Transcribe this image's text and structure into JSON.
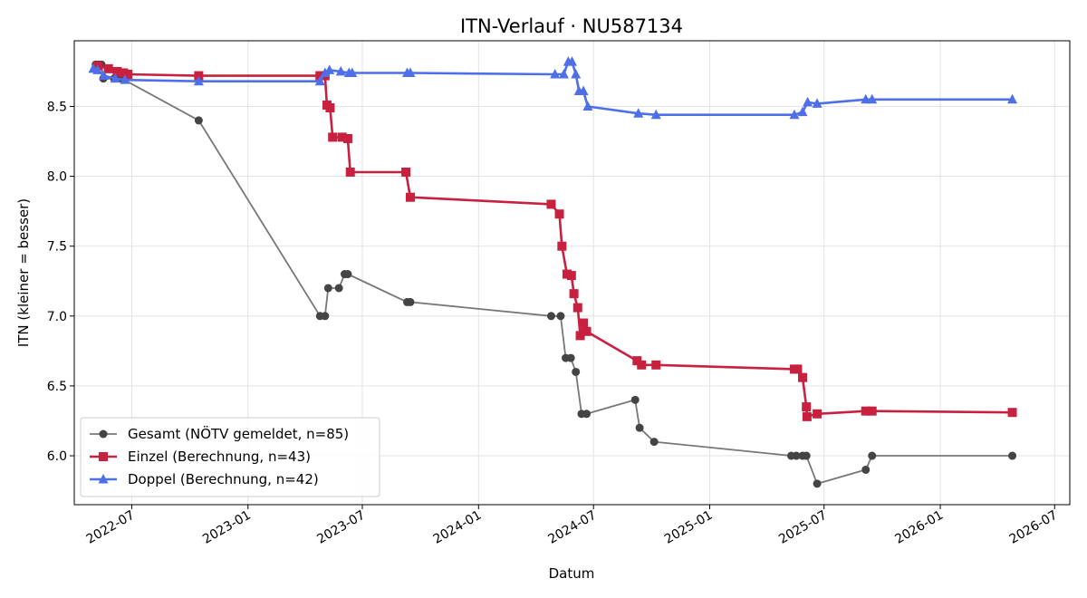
{
  "chart_data": {
    "type": "line",
    "title": "ITN-Verlauf · NU587134",
    "xlabel": "Datum",
    "ylabel": "ITN  (kleiner = besser)",
    "xlim": [
      "2022-04-01",
      "2026-07-25"
    ],
    "ylim": [
      5.65,
      8.97
    ],
    "x_ticks": [
      "2022-07",
      "2023-01",
      "2023-07",
      "2024-01",
      "2024-07",
      "2025-01",
      "2025-07",
      "2026-01",
      "2026-07"
    ],
    "y_ticks": [
      "6.0",
      "6.5",
      "7.0",
      "7.5",
      "8.0",
      "8.5"
    ],
    "grid": true,
    "legend_position": "lower-left",
    "series": [
      {
        "name": "Gesamt (NÖTV gemeldet, n=85)",
        "color": "#444444",
        "line_color": "#777777",
        "marker": "circle",
        "points": [
          [
            "2022-05-05",
            8.8
          ],
          [
            "2022-05-10",
            8.8
          ],
          [
            "2022-05-14",
            8.8
          ],
          [
            "2022-05-17",
            8.7
          ],
          [
            "2022-06-03",
            8.7
          ],
          [
            "2022-06-10",
            8.7
          ],
          [
            "2022-06-15",
            8.7
          ],
          [
            "2022-10-15",
            8.4
          ],
          [
            "2023-04-25",
            7.0
          ],
          [
            "2023-05-03",
            7.0
          ],
          [
            "2023-05-08",
            7.2
          ],
          [
            "2023-05-25",
            7.2
          ],
          [
            "2023-06-03",
            7.3
          ],
          [
            "2023-06-08",
            7.3
          ],
          [
            "2023-09-10",
            7.1
          ],
          [
            "2023-09-15",
            7.1
          ],
          [
            "2024-04-25",
            7.0
          ],
          [
            "2024-05-10",
            7.0
          ],
          [
            "2024-05-18",
            6.7
          ],
          [
            "2024-05-26",
            6.7
          ],
          [
            "2024-06-03",
            6.6
          ],
          [
            "2024-06-12",
            6.3
          ],
          [
            "2024-06-20",
            6.3
          ],
          [
            "2024-09-05",
            6.4
          ],
          [
            "2024-09-12",
            6.2
          ],
          [
            "2024-10-05",
            6.1
          ],
          [
            "2025-05-10",
            6.0
          ],
          [
            "2025-05-18",
            6.0
          ],
          [
            "2025-05-28",
            6.0
          ],
          [
            "2025-06-03",
            6.0
          ],
          [
            "2025-06-20",
            5.8
          ],
          [
            "2025-09-05",
            5.9
          ],
          [
            "2025-09-15",
            6.0
          ],
          [
            "2026-04-25",
            6.0
          ]
        ]
      },
      {
        "name": "Einzel (Berechnung, n=43)",
        "color": "#c8203f",
        "line_color": "#c8203f",
        "marker": "square",
        "points": [
          [
            "2022-05-08",
            8.79
          ],
          [
            "2022-05-25",
            8.77
          ],
          [
            "2022-06-08",
            8.75
          ],
          [
            "2022-06-18",
            8.74
          ],
          [
            "2022-06-25",
            8.73
          ],
          [
            "2022-10-15",
            8.72
          ],
          [
            "2023-04-25",
            8.72
          ],
          [
            "2023-05-03",
            8.72
          ],
          [
            "2023-05-06",
            8.51
          ],
          [
            "2023-05-11",
            8.49
          ],
          [
            "2023-05-15",
            8.28
          ],
          [
            "2023-05-30",
            8.28
          ],
          [
            "2023-06-08",
            8.27
          ],
          [
            "2023-06-12",
            8.03
          ],
          [
            "2023-09-08",
            8.03
          ],
          [
            "2023-09-15",
            7.85
          ],
          [
            "2024-04-25",
            7.8
          ],
          [
            "2024-05-08",
            7.73
          ],
          [
            "2024-05-12",
            7.5
          ],
          [
            "2024-05-20",
            7.3
          ],
          [
            "2024-05-27",
            7.29
          ],
          [
            "2024-05-31",
            7.16
          ],
          [
            "2024-06-06",
            7.06
          ],
          [
            "2024-06-10",
            6.86
          ],
          [
            "2024-06-15",
            6.95
          ],
          [
            "2024-06-20",
            6.89
          ],
          [
            "2024-09-08",
            6.68
          ],
          [
            "2024-09-15",
            6.65
          ],
          [
            "2024-10-08",
            6.65
          ],
          [
            "2025-05-15",
            6.62
          ],
          [
            "2025-05-20",
            6.62
          ],
          [
            "2025-05-28",
            6.56
          ],
          [
            "2025-06-03",
            6.35
          ],
          [
            "2025-06-04",
            6.28
          ],
          [
            "2025-06-20",
            6.3
          ],
          [
            "2025-09-05",
            6.32
          ],
          [
            "2025-09-15",
            6.32
          ],
          [
            "2026-04-25",
            6.31
          ]
        ]
      },
      {
        "name": "Doppel (Berechnung, n=42)",
        "color": "#4f6fe8",
        "line_color": "#4f6fe8",
        "marker": "triangle",
        "points": [
          [
            "2022-05-01",
            8.77
          ],
          [
            "2022-05-08",
            8.76
          ],
          [
            "2022-05-18",
            8.72
          ],
          [
            "2022-06-05",
            8.7
          ],
          [
            "2022-06-20",
            8.69
          ],
          [
            "2022-10-15",
            8.68
          ],
          [
            "2023-04-25",
            8.68
          ],
          [
            "2023-05-03",
            8.74
          ],
          [
            "2023-05-10",
            8.76
          ],
          [
            "2023-05-28",
            8.75
          ],
          [
            "2023-06-10",
            8.74
          ],
          [
            "2023-06-15",
            8.74
          ],
          [
            "2023-09-10",
            8.74
          ],
          [
            "2023-09-15",
            8.74
          ],
          [
            "2024-05-01",
            8.73
          ],
          [
            "2024-05-15",
            8.73
          ],
          [
            "2024-05-22",
            8.82
          ],
          [
            "2024-05-28",
            8.82
          ],
          [
            "2024-06-03",
            8.73
          ],
          [
            "2024-06-08",
            8.61
          ],
          [
            "2024-06-15",
            8.61
          ],
          [
            "2024-06-22",
            8.5
          ],
          [
            "2024-09-10",
            8.45
          ],
          [
            "2024-10-08",
            8.44
          ],
          [
            "2025-05-15",
            8.44
          ],
          [
            "2025-05-28",
            8.46
          ],
          [
            "2025-06-05",
            8.53
          ],
          [
            "2025-06-20",
            8.52
          ],
          [
            "2025-09-05",
            8.55
          ],
          [
            "2025-09-15",
            8.55
          ],
          [
            "2026-04-25",
            8.55
          ]
        ]
      }
    ]
  }
}
